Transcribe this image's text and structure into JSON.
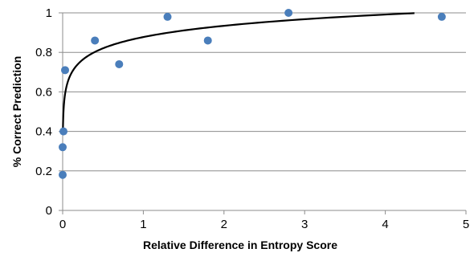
{
  "chart_data": {
    "type": "scatter",
    "xlabel": "Relative Difference in Entropy Score",
    "ylabel": "% Correct Prediction",
    "xlim": [
      0,
      5
    ],
    "ylim": [
      0,
      1
    ],
    "x_ticks": [
      "0",
      "1",
      "2",
      "3",
      "4",
      "5"
    ],
    "y_ticks": [
      "0",
      "0.2",
      "0.4",
      "0.6",
      "0.8",
      "1"
    ],
    "x_tick_values": [
      0,
      1,
      2,
      3,
      4,
      5
    ],
    "y_tick_values": [
      0,
      0.2,
      0.4,
      0.6,
      0.8,
      1
    ],
    "grid": "horizontal",
    "legend": "none",
    "marker_color": "#4a7ebb",
    "trendline_color": "#000000",
    "trendline_type": "logarithmic",
    "series": [
      {
        "points": [
          {
            "x": 0.0,
            "y": 0.18
          },
          {
            "x": 0.0,
            "y": 0.32
          },
          {
            "x": 0.01,
            "y": 0.4
          },
          {
            "x": 0.03,
            "y": 0.71
          },
          {
            "x": 0.4,
            "y": 0.86
          },
          {
            "x": 0.7,
            "y": 0.74
          },
          {
            "x": 1.3,
            "y": 0.98
          },
          {
            "x": 1.8,
            "y": 0.86
          },
          {
            "x": 2.8,
            "y": 1.0
          },
          {
            "x": 4.7,
            "y": 0.98
          }
        ]
      }
    ]
  }
}
